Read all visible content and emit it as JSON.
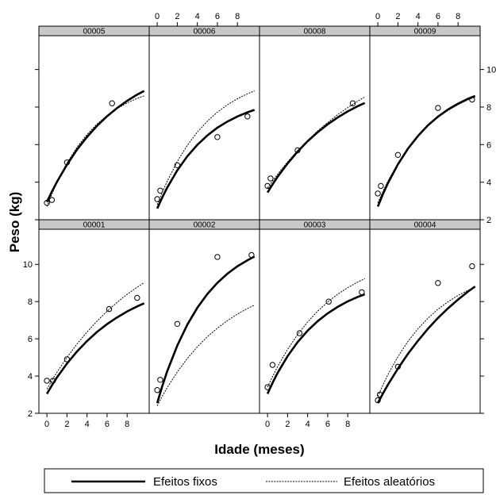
{
  "chart_data": {
    "type": "line",
    "xlabel": "Idade (meses)",
    "ylabel": "Peso (kg)",
    "xlim": [
      -0.8,
      10.2
    ],
    "ylim": [
      2,
      11.8
    ],
    "xticks": [
      0,
      2,
      4,
      6,
      8
    ],
    "yticks": [
      2,
      4,
      6,
      8,
      10
    ],
    "legend": {
      "placement": "bottom",
      "entries": [
        {
          "label": "Efeitos fixos",
          "style": "solid"
        },
        {
          "label": "Efeitos aleatórios",
          "style": "dashed"
        }
      ]
    },
    "colors": {
      "lines": "#000000",
      "strip": "#c8c8c8"
    },
    "panels": [
      {
        "id": "00005",
        "row": 0,
        "col": 0,
        "observed": {
          "x": [
            0,
            0.5,
            2,
            6.5
          ],
          "y": [
            2.9,
            3.05,
            5.05,
            8.2
          ]
        },
        "fixed": {
          "x": [
            0,
            0.5,
            1,
            2,
            3,
            4,
            5,
            6,
            7,
            8,
            9,
            9.7
          ],
          "y": [
            2.95,
            3.5,
            4.01,
            4.93,
            5.73,
            6.41,
            7.0,
            7.51,
            7.95,
            8.33,
            8.66,
            8.86
          ]
        },
        "random": {
          "x": [
            0,
            0.5,
            1,
            2,
            3,
            4,
            5,
            6,
            7,
            8,
            9,
            9.7
          ],
          "y": [
            2.7,
            3.37,
            3.98,
            5.02,
            5.86,
            6.54,
            7.1,
            7.55,
            7.92,
            8.22,
            8.46,
            8.6
          ]
        }
      },
      {
        "id": "00006",
        "row": 0,
        "col": 1,
        "observed": {
          "x": [
            0,
            0.3,
            2,
            6,
            9
          ],
          "y": [
            3.1,
            3.55,
            4.9,
            6.4,
            7.5
          ]
        },
        "fixed": {
          "x": [
            0,
            0.5,
            1,
            2,
            3,
            4,
            5,
            6,
            7,
            8,
            9,
            9.7
          ],
          "y": [
            2.6,
            3.18,
            3.71,
            4.63,
            5.38,
            5.99,
            6.49,
            6.9,
            7.23,
            7.5,
            7.72,
            7.85
          ]
        },
        "random": {
          "x": [
            0,
            0.5,
            1,
            2,
            3,
            4,
            5,
            6,
            7,
            8,
            9,
            9.7
          ],
          "y": [
            2.8,
            3.45,
            4.05,
            5.1,
            5.96,
            6.67,
            7.25,
            7.73,
            8.12,
            8.44,
            8.71,
            8.86
          ]
        }
      },
      {
        "id": "00008",
        "row": 0,
        "col": 2,
        "observed": {
          "x": [
            0,
            0.3,
            3,
            8.5
          ],
          "y": [
            3.8,
            4.2,
            5.7,
            8.2
          ]
        },
        "fixed": {
          "x": [
            0,
            0.5,
            1,
            2,
            3,
            4,
            5,
            6,
            7,
            8,
            9,
            9.7
          ],
          "y": [
            3.45,
            3.88,
            4.28,
            5.0,
            5.63,
            6.18,
            6.66,
            7.08,
            7.45,
            7.77,
            8.05,
            8.22
          ]
        },
        "random": {
          "x": [
            0,
            0.5,
            1,
            2,
            3,
            4,
            5,
            6,
            7,
            8,
            9,
            9.7
          ],
          "y": [
            3.7,
            4.06,
            4.42,
            5.08,
            5.68,
            6.23,
            6.73,
            7.18,
            7.6,
            7.97,
            8.32,
            8.54
          ]
        }
      },
      {
        "id": "00009",
        "row": 0,
        "col": 3,
        "observed": {
          "x": [
            0,
            0.3,
            2,
            6,
            9.4
          ],
          "y": [
            3.4,
            3.8,
            5.45,
            7.95,
            8.4
          ]
        },
        "fixed": {
          "x": [
            0,
            0.5,
            1,
            2,
            3,
            4,
            5,
            6,
            7,
            8,
            9,
            9.7
          ],
          "y": [
            2.7,
            3.35,
            3.94,
            4.95,
            5.78,
            6.46,
            7.03,
            7.49,
            7.87,
            8.18,
            8.44,
            8.59
          ]
        },
        "random": {
          "x": [
            0,
            0.5,
            1,
            2,
            3,
            4,
            5,
            6,
            7,
            8,
            9,
            9.7
          ],
          "y": [
            2.9,
            3.5,
            4.05,
            5.0,
            5.8,
            6.45,
            7.0,
            7.45,
            7.82,
            8.13,
            8.39,
            8.54
          ]
        }
      },
      {
        "id": "00001",
        "row": 1,
        "col": 0,
        "observed": {
          "x": [
            0,
            0.6,
            2,
            6.2,
            9
          ],
          "y": [
            3.75,
            3.75,
            4.9,
            7.6,
            8.2
          ]
        },
        "fixed": {
          "x": [
            0,
            0.5,
            1,
            2,
            3,
            4,
            5,
            6,
            7,
            8,
            9,
            9.7
          ],
          "y": [
            3.05,
            3.5,
            3.92,
            4.67,
            5.32,
            5.88,
            6.37,
            6.79,
            7.15,
            7.47,
            7.74,
            7.91
          ]
        },
        "random": {
          "x": [
            0,
            0.5,
            1,
            2,
            3,
            4,
            5,
            6,
            7,
            8,
            9,
            9.7
          ],
          "y": [
            3.3,
            3.76,
            4.2,
            5.0,
            5.72,
            6.37,
            6.95,
            7.48,
            7.96,
            8.39,
            8.77,
            9.02
          ]
        }
      },
      {
        "id": "00002",
        "row": 1,
        "col": 1,
        "observed": {
          "x": [
            0,
            0.3,
            2,
            6,
            9.4
          ],
          "y": [
            3.25,
            3.8,
            6.8,
            10.4,
            10.5
          ]
        },
        "fixed": {
          "x": [
            0,
            0.5,
            1,
            2,
            3,
            4,
            5,
            6,
            7,
            8,
            9,
            9.7
          ],
          "y": [
            2.55,
            3.45,
            4.26,
            5.64,
            6.76,
            7.67,
            8.41,
            9.01,
            9.5,
            9.9,
            10.22,
            10.42
          ]
        },
        "random": {
          "x": [
            0,
            0.5,
            1,
            2,
            3,
            4,
            5,
            6,
            7,
            8,
            9,
            9.7
          ],
          "y": [
            2.4,
            2.91,
            3.38,
            4.22,
            4.94,
            5.57,
            6.11,
            6.57,
            6.98,
            7.33,
            7.63,
            7.81
          ]
        }
      },
      {
        "id": "00003",
        "row": 1,
        "col": 2,
        "observed": {
          "x": [
            0,
            0.5,
            3.2,
            6.1,
            9.4
          ],
          "y": [
            3.4,
            4.6,
            6.3,
            8.0,
            8.5
          ]
        },
        "fixed": {
          "x": [
            0,
            0.5,
            1,
            2,
            3,
            4,
            5,
            6,
            7,
            8,
            9,
            9.7
          ],
          "y": [
            3.05,
            3.63,
            4.16,
            5.07,
            5.82,
            6.44,
            6.95,
            7.37,
            7.72,
            8.01,
            8.25,
            8.39
          ]
        },
        "random": {
          "x": [
            0,
            0.5,
            1,
            2,
            3,
            4,
            5,
            6,
            7,
            8,
            9,
            9.7
          ],
          "y": [
            3.4,
            3.97,
            4.5,
            5.43,
            6.23,
            6.91,
            7.49,
            7.98,
            8.4,
            8.75,
            9.05,
            9.23
          ]
        }
      },
      {
        "id": "00004",
        "row": 1,
        "col": 3,
        "observed": {
          "x": [
            0,
            0.2,
            2,
            6,
            9.4
          ],
          "y": [
            2.7,
            3.0,
            4.5,
            9.0,
            9.9
          ]
        },
        "fixed": {
          "x": [
            0,
            0.5,
            1,
            2,
            3,
            4,
            5,
            6,
            7,
            8,
            9,
            9.7
          ],
          "y": [
            2.55,
            3.05,
            3.53,
            4.4,
            5.19,
            5.9,
            6.54,
            7.12,
            7.64,
            8.11,
            8.54,
            8.81
          ]
        },
        "random": {
          "x": [
            0,
            0.5,
            1,
            2,
            3,
            4,
            5,
            6,
            7,
            8,
            9,
            9.7
          ],
          "y": [
            2.9,
            3.51,
            4.07,
            5.04,
            5.86,
            6.54,
            7.11,
            7.59,
            7.99,
            8.33,
            8.61,
            8.78
          ]
        }
      }
    ]
  }
}
